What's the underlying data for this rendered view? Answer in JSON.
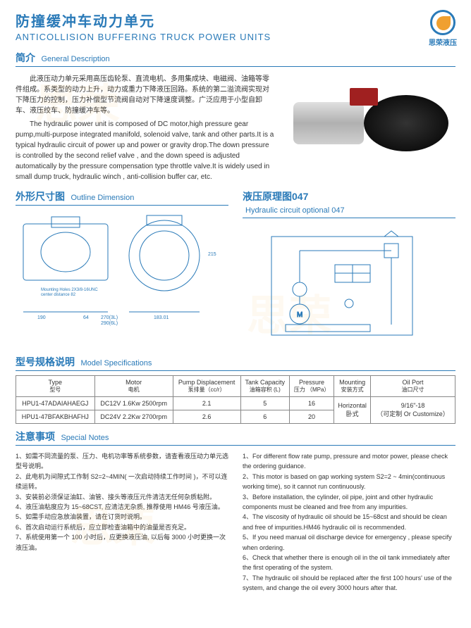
{
  "title_cn": "防撞缓冲车动力单元",
  "title_en": "ANTICOLLISION BUFFERING TRUCK POWER UNITS",
  "logo_text": "思荣液压",
  "sections": {
    "desc": {
      "cn": "简介",
      "en": "General Description"
    },
    "outline": {
      "cn": "外形尺寸图",
      "en": "Outline Dimension"
    },
    "circuit": {
      "cn": "液压原理图047",
      "en": "Hydraulic circuit optional 047"
    },
    "spec": {
      "cn": "型号规格说明",
      "en": "Model Specifications"
    },
    "notes": {
      "cn": "注意事项",
      "en": "Special Notes"
    }
  },
  "desc_cn": "此液压动力单元采用高压齿轮泵、直流电机、多用集成块、电磁阀、油箱等零件组成。系类型的动力上升，动力或重力下降液压回路。系统的第二溢流阀实现对下降压力的控制，压力补偿型节流阀自动对下降速度调整。广泛应用于小型自卸车、液压绞车、防撞缓冲车等。",
  "desc_en": "The hydraulic power unit is composed of DC motor,high pressure gear pump,multi-purpose integrated manifold, solenoid valve, tank and other parts.It is a typical hydraulic circuit of power up and power or gravity drop.The down pressure is controlled by the second relief valve , and the down speed is adjusted automatically by the pressure compensation type throttle valve.It is widely used in small dump truck, hydraulic winch , anti-collision buffer car, etc.",
  "outline_labels": {
    "mounting": "Mounting Holes 2X3/8-16UNC",
    "center": "center distance 82",
    "dim1": "190",
    "dim2": "64",
    "dim3": "270(3L)",
    "dim4": "290(6L)",
    "dim5": "183.01",
    "dim6": "215"
  },
  "table": {
    "headers": [
      {
        "top": "Type",
        "sub": "型号"
      },
      {
        "top": "Motor",
        "sub": "电机"
      },
      {
        "top": "Pump Displacement",
        "sub": "泵排量（cc/r）"
      },
      {
        "top": "Tank Capacity",
        "sub": "油箱容积 (L)"
      },
      {
        "top": "Pressure",
        "sub": "压力 （MPa）"
      },
      {
        "top": "Mounting",
        "sub": "安装方式"
      },
      {
        "top": "Oil Port",
        "sub": "油口尺寸"
      }
    ],
    "rows": [
      [
        "HPU1-47ADAIAHAEGJ",
        "DC12V 1.6Kw 2500rpm",
        "2.1",
        "5",
        "16"
      ],
      [
        "HPU1-47BFAKBHAFHJ",
        "DC24V 2.2Kw 2700rpm",
        "2.6",
        "6",
        "20"
      ]
    ],
    "merged": {
      "mounting": "Horizontal\n卧式",
      "oilport": "9/16\"-18\n（可定制 Or Customize）"
    }
  },
  "notes_cn": [
    "1、如需不同流量的泵、压力、电机功率等系统参数，请查看液压动力单元选型号说明。",
    "2、此电机为间隙式工作制 S2=2~4MIN( 一次启动持续工作时间 )，不可以连续运转。",
    "3、安装前必须保证油缸、油管、接头等液压元件清洁无任何杂质粘附。",
    "4、液压油粘度应为 15~68CST, 应清洁无杂质, 推荐使用 HM46 号液压油。",
    "5、如需手动应急放油装置，请在订货时说明。",
    "6、首次启动运行系统后，应立即检查油箱中的油量是否充足。",
    "7、系统使用第一个 100 小时后，应更换液压油, 以后每 3000 小时更换一次液压油。"
  ],
  "notes_en": [
    "1、For different flow rate pump, pressure and motor power, please check the ordering guidance.",
    "2、This motor is based on gap working system S2=2 ~ 4min(continuous working time), so it cannot run continuously.",
    "3、Before installation, the cylinder, oil pipe, joint and other hydraulic components must be cleaned and free from any impurities.",
    "4、The viscosity of hydraulic oil should be 15~68cst and should be clean and free of impurities.HM46 hydraulic oil is recommended.",
    "5、If you need manual oil discharge device for emergency , please specify when ordering.",
    "6、Check that whether there is enough oil in the oil tank immediately after the first operating of the system.",
    "7、The hydraulic oil should be replaced after the first 100 hours' use of the system, and change the oil every 3000 hours after that."
  ]
}
